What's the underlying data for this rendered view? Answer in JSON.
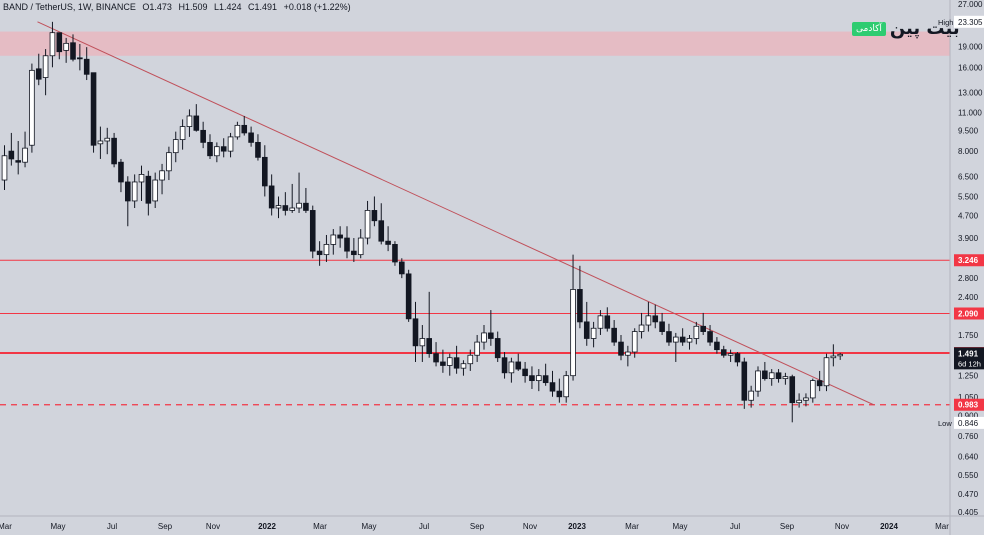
{
  "header": {
    "symbol": "BAND / TetherUS, 1W, BINANCE",
    "open": "O1.473",
    "high": "H1.509",
    "low": "L1.424",
    "close": "C1.491",
    "change": "+0.018 (+1.22%)"
  },
  "logo": {
    "text": "بیت پین",
    "badge": "آکادمی"
  },
  "colors": {
    "background": "#d1d4dc",
    "line": "#f23645",
    "trend": "#c0505a",
    "candle": "#131722"
  },
  "chart_data": {
    "type": "candlestick",
    "scale": "log",
    "ylim": [
      0.405,
      27.0
    ],
    "y_ticks": [
      27.0,
      23.305,
      19.0,
      16.0,
      13.0,
      11.0,
      9.5,
      8.0,
      6.5,
      5.5,
      4.7,
      3.9,
      3.246,
      2.8,
      2.4,
      2.09,
      1.75,
      1.507,
      1.491,
      1.25,
      1.05,
      0.983,
      0.9,
      0.846,
      0.76,
      0.64,
      0.55,
      0.47,
      0.405
    ],
    "x_labels": [
      "Mar",
      "May",
      "Jul",
      "Sep",
      "Nov",
      "2022",
      "Mar",
      "May",
      "Jul",
      "Sep",
      "Nov",
      "2023",
      "Mar",
      "May",
      "Jul",
      "Sep",
      "Nov",
      "2024",
      "Mar"
    ],
    "price_labels": [
      {
        "label": "High",
        "value": "23.305"
      },
      {
        "label": "",
        "value": "3.246"
      },
      {
        "label": "",
        "value": "2.090"
      },
      {
        "label": "",
        "value": "1.507"
      },
      {
        "label": "",
        "value": "1.491",
        "sub": "6d 12h"
      },
      {
        "label": "",
        "value": "0.983"
      },
      {
        "label": "Low",
        "value": "0.846"
      }
    ],
    "resistance_zone": [
      17.6,
      21.5
    ],
    "horizontal_lines": [
      3.246,
      2.09,
      1.507
    ],
    "dashed_lines": [
      0.983
    ],
    "trendline": [
      {
        "x": 0,
        "y": 23.3
      },
      {
        "x": 119,
        "y": 0.983
      }
    ],
    "candles": [
      [
        0,
        6.3,
        8.4,
        5.8,
        7.7
      ],
      [
        1,
        8.0,
        9.3,
        7.1,
        7.5
      ],
      [
        2,
        7.4,
        8.7,
        6.6,
        7.3
      ],
      [
        3,
        7.3,
        9.4,
        7.0,
        8.2
      ],
      [
        4,
        8.4,
        16.5,
        7.9,
        15.6
      ],
      [
        5,
        15.8,
        17.9,
        13.8,
        14.5
      ],
      [
        6,
        14.7,
        18.6,
        12.7,
        17.6
      ],
      [
        7,
        17.6,
        23.3,
        16.0,
        21.3
      ],
      [
        8,
        21.3,
        21.3,
        17.1,
        18.2
      ],
      [
        9,
        18.4,
        20.4,
        16.6,
        19.5
      ],
      [
        10,
        19.6,
        21.0,
        16.8,
        17.1
      ],
      [
        11,
        17.3,
        19.4,
        15.6,
        17.2
      ],
      [
        12,
        17.1,
        18.9,
        14.4,
        15.1
      ],
      [
        13,
        15.3,
        15.3,
        7.9,
        8.4
      ],
      [
        14,
        8.5,
        9.8,
        7.5,
        8.7
      ],
      [
        15,
        8.7,
        9.7,
        7.8,
        8.9
      ],
      [
        16,
        8.9,
        9.3,
        7.0,
        7.2
      ],
      [
        17,
        7.3,
        7.5,
        5.7,
        6.2
      ],
      [
        18,
        6.2,
        6.5,
        4.3,
        5.3
      ],
      [
        19,
        5.3,
        6.6,
        5.0,
        6.2
      ],
      [
        20,
        6.2,
        7.1,
        5.3,
        6.6
      ],
      [
        21,
        6.5,
        6.8,
        4.7,
        5.2
      ],
      [
        22,
        5.3,
        6.7,
        5.0,
        6.3
      ],
      [
        23,
        6.3,
        7.2,
        5.6,
        6.8
      ],
      [
        24,
        6.8,
        8.3,
        6.3,
        7.9
      ],
      [
        25,
        7.9,
        9.4,
        7.3,
        8.8
      ],
      [
        26,
        8.8,
        10.4,
        8.1,
        9.8
      ],
      [
        27,
        9.8,
        11.3,
        9.0,
        10.7
      ],
      [
        28,
        10.7,
        11.8,
        9.4,
        9.5
      ],
      [
        29,
        9.5,
        10.2,
        8.2,
        8.6
      ],
      [
        30,
        8.6,
        9.2,
        7.5,
        7.7
      ],
      [
        31,
        7.7,
        8.6,
        7.3,
        8.3
      ],
      [
        32,
        8.3,
        8.9,
        7.6,
        8.0
      ],
      [
        33,
        8.0,
        9.3,
        7.6,
        9.0
      ],
      [
        34,
        9.0,
        10.2,
        8.8,
        9.9
      ],
      [
        35,
        9.9,
        10.7,
        9.1,
        9.3
      ],
      [
        36,
        9.3,
        9.8,
        8.3,
        8.6
      ],
      [
        37,
        8.6,
        9.2,
        7.4,
        7.6
      ],
      [
        38,
        7.6,
        8.4,
        5.5,
        6.0
      ],
      [
        39,
        6.0,
        6.6,
        4.7,
        5.0
      ],
      [
        40,
        5.0,
        5.5,
        4.6,
        5.1
      ],
      [
        41,
        5.1,
        5.7,
        4.7,
        4.9
      ],
      [
        42,
        4.9,
        6.1,
        4.8,
        5.0
      ],
      [
        43,
        5.0,
        6.7,
        4.8,
        5.2
      ],
      [
        44,
        5.2,
        5.9,
        4.8,
        4.9
      ],
      [
        45,
        4.9,
        5.1,
        3.3,
        3.5
      ],
      [
        46,
        3.5,
        3.8,
        3.1,
        3.4
      ],
      [
        47,
        3.4,
        4.0,
        3.2,
        3.7
      ],
      [
        48,
        3.7,
        4.2,
        3.4,
        4.0
      ],
      [
        49,
        4.0,
        4.3,
        3.6,
        3.9
      ],
      [
        50,
        3.9,
        4.3,
        3.3,
        3.5
      ],
      [
        51,
        3.5,
        3.9,
        3.2,
        3.4
      ],
      [
        52,
        3.4,
        4.2,
        3.3,
        3.9
      ],
      [
        53,
        3.9,
        5.3,
        3.7,
        4.9
      ],
      [
        54,
        4.9,
        5.5,
        4.3,
        4.5
      ],
      [
        55,
        4.5,
        5.2,
        3.7,
        3.8
      ],
      [
        56,
        3.8,
        4.3,
        3.5,
        3.7
      ],
      [
        57,
        3.7,
        3.8,
        3.1,
        3.2
      ],
      [
        58,
        3.2,
        3.3,
        2.8,
        2.9
      ],
      [
        59,
        2.9,
        3.0,
        1.95,
        2.0
      ],
      [
        60,
        2.0,
        2.3,
        1.4,
        1.6
      ],
      [
        61,
        1.6,
        1.9,
        1.4,
        1.7
      ],
      [
        62,
        1.7,
        2.5,
        1.45,
        1.5
      ],
      [
        63,
        1.5,
        1.65,
        1.35,
        1.4
      ],
      [
        64,
        1.4,
        1.55,
        1.28,
        1.36
      ],
      [
        65,
        1.36,
        1.5,
        1.25,
        1.45
      ],
      [
        66,
        1.45,
        1.6,
        1.27,
        1.33
      ],
      [
        67,
        1.33,
        1.42,
        1.25,
        1.38
      ],
      [
        68,
        1.38,
        1.55,
        1.3,
        1.48
      ],
      [
        69,
        1.48,
        1.75,
        1.4,
        1.65
      ],
      [
        70,
        1.65,
        1.9,
        1.55,
        1.78
      ],
      [
        71,
        1.78,
        2.15,
        1.6,
        1.7
      ],
      [
        72,
        1.7,
        1.8,
        1.4,
        1.45
      ],
      [
        73,
        1.45,
        1.52,
        1.22,
        1.28
      ],
      [
        74,
        1.28,
        1.45,
        1.18,
        1.4
      ],
      [
        75,
        1.4,
        1.5,
        1.3,
        1.32
      ],
      [
        76,
        1.32,
        1.4,
        1.18,
        1.25
      ],
      [
        77,
        1.25,
        1.35,
        1.12,
        1.2
      ],
      [
        78,
        1.2,
        1.32,
        1.1,
        1.25
      ],
      [
        79,
        1.25,
        1.38,
        1.15,
        1.18
      ],
      [
        80,
        1.18,
        1.3,
        1.05,
        1.1
      ],
      [
        81,
        1.1,
        1.22,
        1.0,
        1.05
      ],
      [
        82,
        1.05,
        1.3,
        1.0,
        1.25
      ],
      [
        83,
        1.25,
        3.4,
        1.2,
        2.55
      ],
      [
        84,
        2.55,
        3.1,
        1.85,
        1.95
      ],
      [
        85,
        1.95,
        2.3,
        1.6,
        1.7
      ],
      [
        86,
        1.7,
        1.95,
        1.58,
        1.85
      ],
      [
        87,
        1.85,
        2.15,
        1.75,
        2.05
      ],
      [
        88,
        2.05,
        2.2,
        1.8,
        1.85
      ],
      [
        89,
        1.85,
        1.98,
        1.6,
        1.65
      ],
      [
        90,
        1.65,
        1.75,
        1.42,
        1.48
      ],
      [
        91,
        1.48,
        1.6,
        1.35,
        1.52
      ],
      [
        92,
        1.52,
        1.85,
        1.45,
        1.8
      ],
      [
        93,
        1.8,
        2.1,
        1.7,
        1.9
      ],
      [
        94,
        1.9,
        2.3,
        1.8,
        2.05
      ],
      [
        95,
        2.05,
        2.25,
        1.85,
        1.95
      ],
      [
        96,
        1.95,
        2.1,
        1.75,
        1.8
      ],
      [
        97,
        1.8,
        1.92,
        1.6,
        1.65
      ],
      [
        98,
        1.65,
        1.78,
        1.4,
        1.72
      ],
      [
        99,
        1.72,
        1.85,
        1.6,
        1.65
      ],
      [
        100,
        1.65,
        1.75,
        1.55,
        1.7
      ],
      [
        101,
        1.7,
        1.95,
        1.62,
        1.88
      ],
      [
        102,
        1.88,
        2.1,
        1.75,
        1.8
      ],
      [
        103,
        1.8,
        1.9,
        1.6,
        1.65
      ],
      [
        104,
        1.65,
        1.72,
        1.5,
        1.55
      ],
      [
        105,
        1.55,
        1.6,
        1.45,
        1.48
      ],
      [
        106,
        1.48,
        1.55,
        1.4,
        1.5
      ],
      [
        107,
        1.5,
        1.52,
        1.35,
        1.4
      ],
      [
        108,
        1.4,
        1.45,
        0.95,
        1.02
      ],
      [
        109,
        1.02,
        1.15,
        0.96,
        1.1
      ],
      [
        110,
        1.1,
        1.35,
        1.05,
        1.3
      ],
      [
        111,
        1.3,
        1.4,
        1.2,
        1.22
      ],
      [
        112,
        1.22,
        1.32,
        1.15,
        1.28
      ],
      [
        113,
        1.28,
        1.32,
        1.18,
        1.22
      ],
      [
        114,
        1.22,
        1.28,
        1.16,
        1.24
      ],
      [
        115,
        1.24,
        1.26,
        0.85,
        1.0
      ],
      [
        116,
        1.0,
        1.08,
        0.96,
        1.02
      ],
      [
        117,
        1.02,
        1.08,
        0.97,
        1.04
      ],
      [
        118,
        1.04,
        1.22,
        1.0,
        1.2
      ],
      [
        119,
        1.2,
        1.3,
        1.1,
        1.15
      ],
      [
        120,
        1.15,
        1.5,
        1.1,
        1.45
      ],
      [
        121,
        1.45,
        1.62,
        1.35,
        1.47
      ],
      [
        122,
        1.473,
        1.509,
        1.424,
        1.491
      ]
    ]
  }
}
